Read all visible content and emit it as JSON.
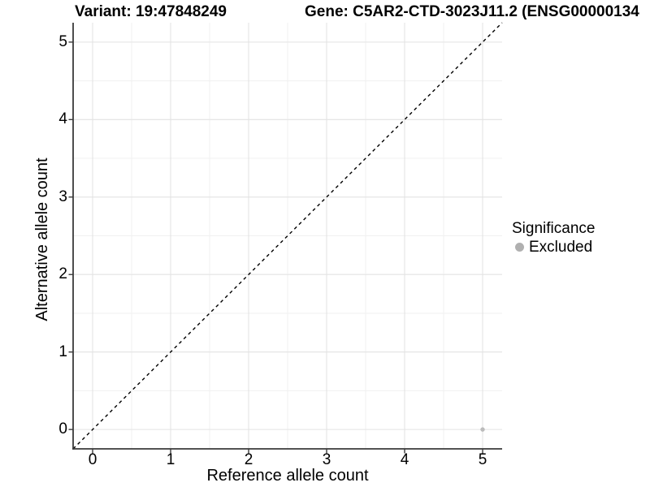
{
  "chart_data": {
    "type": "scatter",
    "title_variant": "Variant: 19:47848249",
    "title_gene": "Gene: C5AR2-CTD-3023J11.2 (ENSG00000134",
    "xlabel": "Reference allele count",
    "ylabel": "Alternative allele count",
    "xlim": [
      -0.25,
      5.25
    ],
    "ylim": [
      -0.25,
      5.25
    ],
    "x_ticks": [
      0,
      1,
      2,
      3,
      4,
      5
    ],
    "y_ticks": [
      0,
      1,
      2,
      3,
      4,
      5
    ],
    "x_minor_ticks": [
      0.5,
      1.5,
      2.5,
      3.5,
      4.5
    ],
    "y_minor_ticks": [
      0.5,
      1.5,
      2.5,
      3.5,
      4.5
    ],
    "grid": "major+minor",
    "identity_line": {
      "slope": 1,
      "intercept": 0,
      "style": "dashed",
      "color": "#000000"
    },
    "series": [
      {
        "name": "Excluded",
        "color": "#bbbbbb",
        "points": [
          {
            "x": 5,
            "y": 0
          }
        ]
      }
    ],
    "legend": {
      "title": "Significance",
      "position": "right",
      "entries": [
        {
          "label": "Excluded",
          "color": "#b0b0b0"
        }
      ]
    }
  },
  "colors": {
    "background": "#ffffff",
    "grid_major": "#e3e3e3",
    "grid_minor": "#f0f0f0",
    "axis_line": "#3a3a3a",
    "tick_mark": "#3a3a3a",
    "text": "#000000"
  }
}
